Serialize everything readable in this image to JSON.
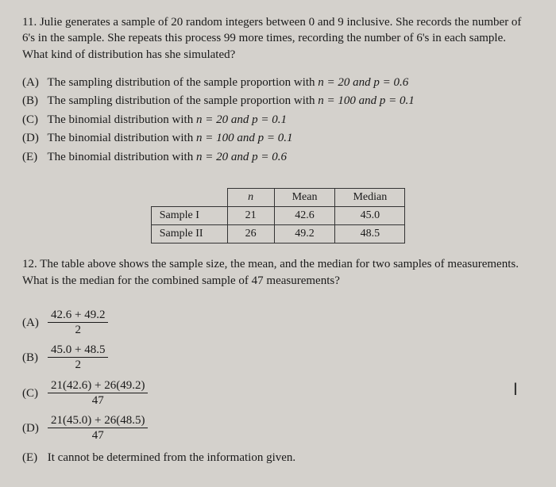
{
  "q11": {
    "number": "11.",
    "text": "Julie generates a sample of 20 random integers between 0 and 9 inclusive. She records the number of 6's in the sample. She repeats this process 99 more times, recording the number of 6's in each sample. What kind of distribution has she simulated?",
    "choices": {
      "A": {
        "label": "(A)",
        "text": "The sampling distribution of the sample proportion with ",
        "math": "n = 20 and p = 0.6"
      },
      "B": {
        "label": "(B)",
        "text": "The sampling distribution of the sample proportion with ",
        "math": "n = 100 and p = 0.1"
      },
      "C": {
        "label": "(C)",
        "text": "The binomial distribution with ",
        "math": "n = 20 and p = 0.1"
      },
      "D": {
        "label": "(D)",
        "text": "The binomial distribution with ",
        "math": "n = 100 and p = 0.1"
      },
      "E": {
        "label": "(E)",
        "text": "The binomial distribution with ",
        "math": "n = 20 and p = 0.6"
      }
    }
  },
  "table": {
    "headers": {
      "c0": "",
      "c1": "n",
      "c2": "Mean",
      "c3": "Median"
    },
    "rows": [
      {
        "c0": "Sample I",
        "c1": "21",
        "c2": "42.6",
        "c3": "45.0"
      },
      {
        "c0": "Sample II",
        "c1": "26",
        "c2": "49.2",
        "c3": "48.5"
      }
    ]
  },
  "q12": {
    "number": "12.",
    "text": "The table above shows the sample size, the mean, and the median for two samples of measurements. What is the median for the combined sample of 47 measurements?",
    "choices": {
      "A": {
        "label": "(A)",
        "num": "42.6 + 49.2",
        "den": "2"
      },
      "B": {
        "label": "(B)",
        "num": "45.0 + 48.5",
        "den": "2"
      },
      "C": {
        "label": "(C)",
        "num": "21(42.6) + 26(49.2)",
        "den": "47"
      },
      "D": {
        "label": "(D)",
        "num": "21(45.0) + 26(48.5)",
        "den": "47"
      },
      "E": {
        "label": "(E)",
        "text": "It cannot be determined from the information given."
      }
    }
  },
  "tick": "I"
}
